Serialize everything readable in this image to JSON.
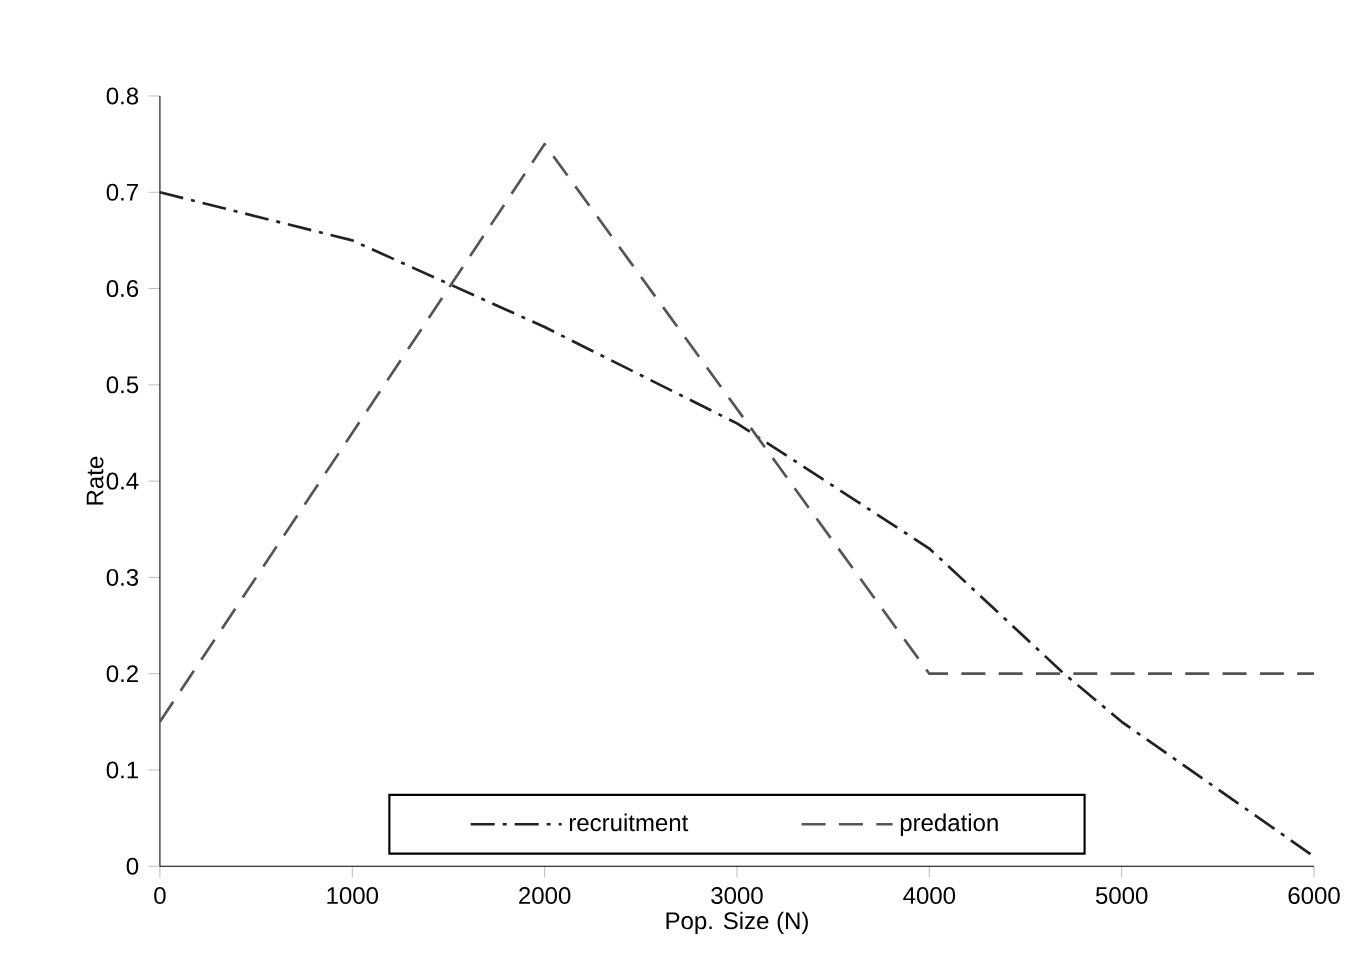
{
  "chart_data": {
    "type": "line",
    "xlabel": "Pop. Size (N)",
    "ylabel": "Rate",
    "xlim": [
      0,
      6000
    ],
    "ylim": [
      0,
      0.8
    ],
    "xticks": [
      0,
      1000,
      2000,
      3000,
      4000,
      5000,
      6000
    ],
    "yticks": [
      0,
      0.1,
      0.2,
      0.3,
      0.4,
      0.5,
      0.6,
      0.7,
      0.8
    ],
    "legend": "bottom",
    "marker": "none",
    "series": [
      {
        "name": "recruitment",
        "color": "#222222",
        "line_style": "dashdot",
        "x": [
          0,
          1000,
          2000,
          3000,
          4000,
          4700,
          5000,
          6000
        ],
        "values": [
          0.7,
          0.65,
          0.56,
          0.46,
          0.33,
          0.2,
          0.15,
          0.01
        ]
      },
      {
        "name": "predation",
        "color": "#555555",
        "line_style": "dashed",
        "x": [
          0,
          2000,
          4000,
          6000
        ],
        "values": [
          0.15,
          0.75,
          0.2,
          0.2
        ]
      }
    ]
  }
}
